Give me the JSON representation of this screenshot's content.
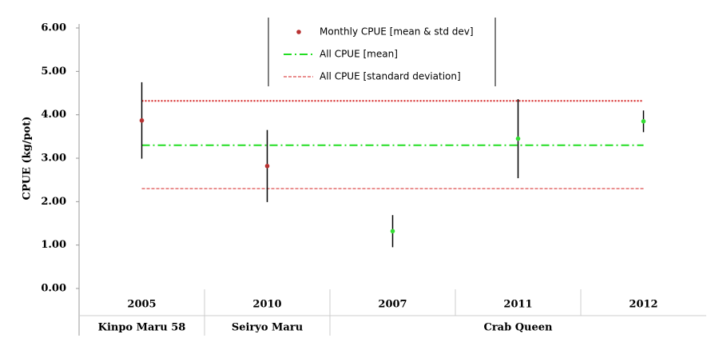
{
  "chart_data": {
    "type": "errorbar",
    "y_label": "CPUE (kg/pot)",
    "categories": [
      "2005",
      "2010",
      "2007",
      "2011",
      "2012"
    ],
    "category_groups": [
      "Kinpo Maru 58",
      "Seiryo Maru",
      "Crab Queen"
    ],
    "series": [
      {
        "name": "Monthly CPUE [mean & std dev]",
        "values": [
          3.87,
          2.82,
          1.32,
          3.45,
          3.85
        ],
        "errors": [
          0.88,
          0.83,
          0.37,
          0.91,
          0.25
        ],
        "colors": [
          "#b83232",
          "#b83232",
          "#33dd33",
          "#33dd33",
          "#33dd33"
        ]
      }
    ],
    "mean_line": {
      "name": "All CPUE [mean]",
      "value": 3.3,
      "color": "#22dd22"
    },
    "sd_lines": {
      "name": "All CPUE [standard deviation]",
      "values": [
        4.32,
        2.3
      ],
      "color": "#d42020"
    },
    "ylim": [
      0,
      6
    ],
    "yticks": [
      {
        "value": 0,
        "label": "0.00"
      },
      {
        "value": 1,
        "label": "1.00"
      },
      {
        "value": 2,
        "label": "2.00"
      },
      {
        "value": 3,
        "label": "3.00"
      },
      {
        "value": 4,
        "label": "4.00"
      },
      {
        "value": 5,
        "label": "5.00"
      },
      {
        "value": 6,
        "label": "6.00"
      }
    ],
    "legend": "top-center"
  }
}
